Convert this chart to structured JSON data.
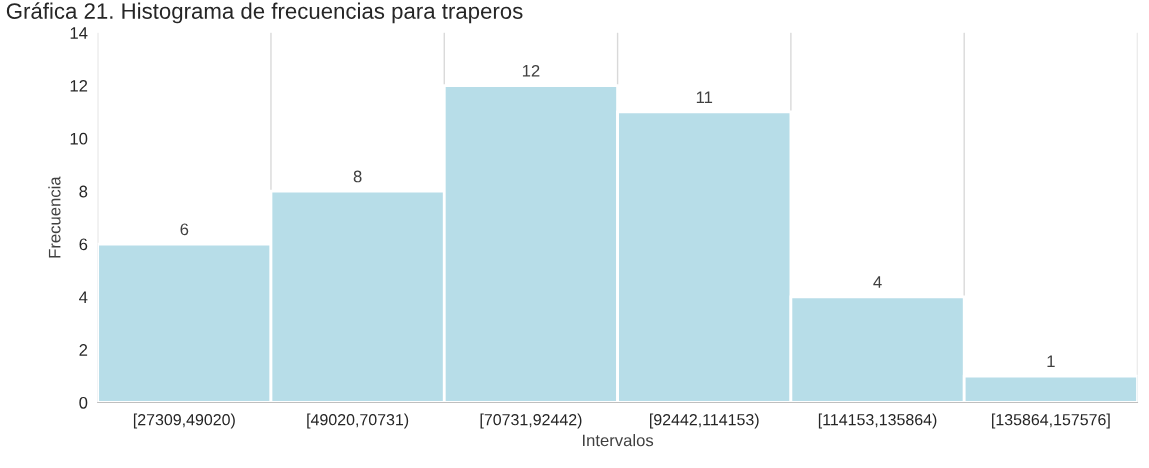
{
  "chart_data": {
    "type": "bar",
    "title": "Gráfica 21. Histograma de frecuencias para traperos",
    "xlabel": "Intervalos",
    "ylabel": "Frecuencia",
    "categories": [
      "[27309,49020)",
      "[49020,70731)",
      "[70731,92442)",
      "[92442,114153)",
      "[114153,135864)",
      "[135864,157576]"
    ],
    "values": [
      6,
      8,
      12,
      11,
      4,
      1
    ],
    "color": "#b7dde8",
    "ylim": [
      0,
      14
    ],
    "yticks": [
      0,
      2,
      4,
      6,
      8,
      10,
      12,
      14
    ],
    "grid": "x",
    "data_labels": true
  }
}
